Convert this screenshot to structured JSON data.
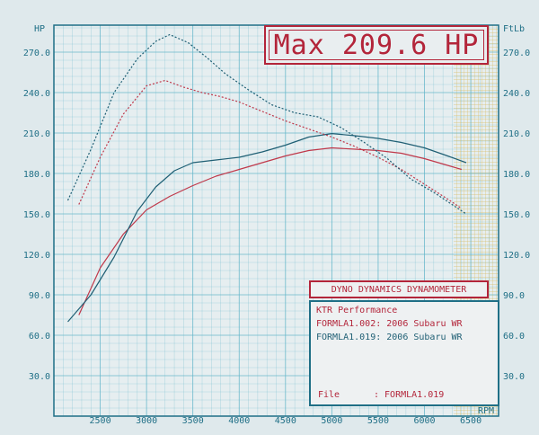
{
  "header": {
    "max_label": "Max 209.6 HP",
    "left_axis_unit": "HP",
    "right_axis_unit": "FtLb",
    "x_axis_unit": "RPM"
  },
  "info_box": {
    "title": "DYNO DYNAMICS DYNAMOMETER",
    "shop": "KTR Performance",
    "run1": "FORMLA1.002: 2006 Subaru WR",
    "run2": "FORMLA1.019: 2006 Subaru WR",
    "file_label": "File",
    "file_value": ": FORMLA1.019"
  },
  "colors": {
    "run1": "#c0384a",
    "run2": "#1f5f74",
    "grid": "#5fb4c8",
    "axis_text": "#1f6f86",
    "accent": "#b3253a",
    "hatch": "#d6b24a"
  },
  "chart_data": {
    "type": "line",
    "xlabel": "RPM",
    "ylabel": "HP",
    "y2label": "FtLb",
    "xlim": [
      2000,
      6800
    ],
    "ylim": [
      0,
      290
    ],
    "x_ticks": [
      2500,
      3000,
      3500,
      4000,
      4500,
      5000,
      5500,
      6000,
      6500
    ],
    "y_ticks": [
      30.0,
      60.0,
      90.0,
      120.0,
      150.0,
      180.0,
      210.0,
      240.0,
      270.0
    ],
    "y_tick_labels": [
      "30.0",
      "60.0",
      "90.0",
      "120.0",
      "150.0",
      "180.0",
      "210.0",
      "240.0",
      "270.0"
    ],
    "y2_ticks": [
      30.0,
      60.0,
      90.0,
      120.0,
      150.0,
      180.0,
      210.0,
      240.0,
      270.0
    ],
    "y2_tick_labels": [
      "30.0",
      "60.0",
      "90.0",
      "120.0",
      "150.0",
      "180.0",
      "210.0",
      "240.0",
      "270.0"
    ],
    "grid": true,
    "series": [
      {
        "name": "FORMLA1.002",
        "kind": "power",
        "style": "solid",
        "x": [
          2270,
          2500,
          2750,
          3000,
          3250,
          3500,
          3750,
          4000,
          4250,
          4500,
          4750,
          5000,
          5250,
          5500,
          5750,
          6000,
          6250,
          6400
        ],
        "y": [
          75,
          110,
          135,
          153,
          163,
          171,
          178,
          183,
          188,
          193,
          197,
          199,
          198,
          197,
          195,
          191,
          186,
          183
        ]
      },
      {
        "name": "FORMLA1.019",
        "kind": "power",
        "style": "solid",
        "x": [
          2150,
          2400,
          2650,
          2900,
          3100,
          3300,
          3500,
          3750,
          4000,
          4250,
          4500,
          4750,
          5000,
          5250,
          5500,
          5750,
          6000,
          6250,
          6450
        ],
        "y": [
          70,
          90,
          118,
          152,
          170,
          182,
          188,
          190,
          192,
          196,
          201,
          207,
          209.6,
          208,
          206,
          203,
          199,
          193,
          188
        ]
      },
      {
        "name": "FORMLA1.002",
        "kind": "torque",
        "style": "dashed",
        "x": [
          2270,
          2500,
          2750,
          3000,
          3200,
          3400,
          3600,
          3800,
          4000,
          4250,
          4500,
          4750,
          5000,
          5250,
          5500,
          5750,
          6000,
          6250,
          6400
        ],
        "y": [
          157,
          192,
          224,
          245,
          249,
          244,
          240,
          237,
          233,
          226,
          219,
          213,
          207,
          200,
          192,
          183,
          172,
          161,
          154
        ]
      },
      {
        "name": "FORMLA1.019",
        "kind": "torque",
        "style": "dashed",
        "x": [
          2150,
          2400,
          2650,
          2900,
          3100,
          3250,
          3450,
          3650,
          3850,
          4100,
          4350,
          4600,
          4850,
          5100,
          5350,
          5600,
          5850,
          6100,
          6450
        ],
        "y": [
          160,
          198,
          240,
          265,
          278,
          283,
          277,
          266,
          254,
          242,
          231,
          225,
          222,
          214,
          203,
          191,
          176,
          166,
          150
        ]
      }
    ]
  }
}
